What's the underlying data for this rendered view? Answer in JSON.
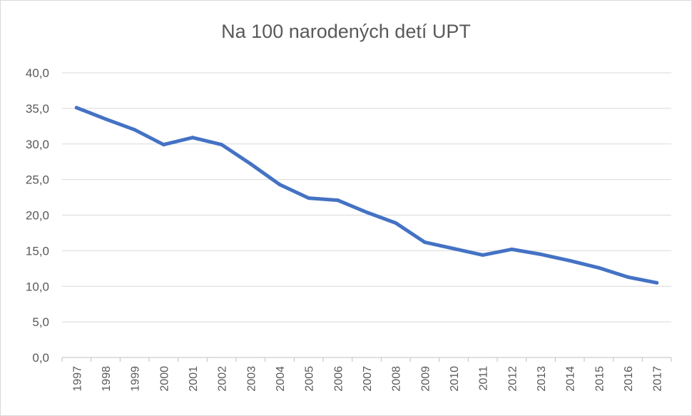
{
  "chart_data": {
    "type": "line",
    "title": "Na 100 narodených detí UPT",
    "xlabel": "",
    "ylabel": "",
    "ylim": [
      0,
      40
    ],
    "yticks": [
      "0,0",
      "5,0",
      "10,0",
      "15,0",
      "20,0",
      "25,0",
      "30,0",
      "35,0",
      "40,0"
    ],
    "grid": true,
    "legend": "none",
    "color": "#4472c4",
    "categories": [
      "1997",
      "1998",
      "1999",
      "2000",
      "2001",
      "2002",
      "2003",
      "2004",
      "2005",
      "2006",
      "2007",
      "2008",
      "2009",
      "2010",
      "2011",
      "2012",
      "2013",
      "2014",
      "2015",
      "2016",
      "2017"
    ],
    "series": [
      {
        "values": [
          35.1,
          33.5,
          32.0,
          29.9,
          30.9,
          29.9,
          27.2,
          24.3,
          22.4,
          22.1,
          20.4,
          18.9,
          16.2,
          15.3,
          14.4,
          15.2,
          14.5,
          13.6,
          12.6,
          11.3,
          10.5
        ]
      }
    ]
  }
}
